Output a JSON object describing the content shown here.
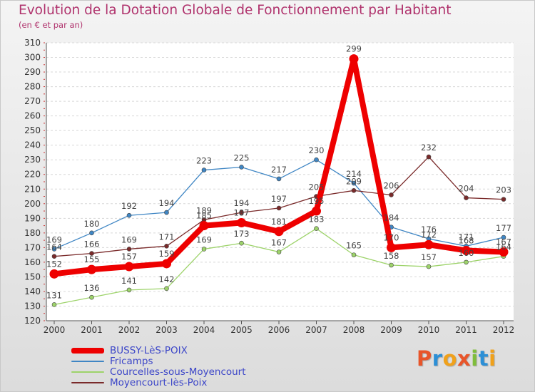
{
  "title": "Evolution de la Dotation Globale de Fonctionnement par Habitant",
  "subtitle": "(en € et par an)",
  "logo": {
    "text": "Proxiti",
    "letters": [
      {
        "ch": "P",
        "color": "#e8552a"
      },
      {
        "ch": "r",
        "color": "#2c8fd6"
      },
      {
        "ch": "o",
        "color": "#f0a11b"
      },
      {
        "ch": "x",
        "color": "#e8552a"
      },
      {
        "ch": "i",
        "color": "#7fbd3c"
      },
      {
        "ch": "t",
        "color": "#2c8fd6"
      },
      {
        "ch": "i",
        "color": "#f0a11b"
      }
    ]
  },
  "chart_data": {
    "type": "line",
    "x": [
      "2000",
      "2001",
      "2002",
      "2003",
      "2004",
      "2005",
      "2006",
      "2007",
      "2008",
      "2009",
      "2010",
      "2011",
      "2012"
    ],
    "ylim": [
      120,
      310
    ],
    "yticks": [
      120,
      130,
      140,
      150,
      160,
      170,
      180,
      190,
      200,
      210,
      220,
      230,
      240,
      250,
      260,
      270,
      280,
      290,
      300,
      310
    ],
    "grid": "dashed-horizontal",
    "legend": "bottom-left",
    "series": [
      {
        "name": "Fricamps",
        "color": "#3f86c4",
        "thick": false,
        "values": [
          169,
          180,
          192,
          194,
          223,
          225,
          217,
          230,
          214,
          184,
          176,
          171,
          177
        ]
      },
      {
        "name": "Courcelles-sous-Moyencourt",
        "color": "#9dd36a",
        "thick": false,
        "values": [
          131,
          136,
          141,
          142,
          169,
          173,
          167,
          183,
          165,
          158,
          157,
          160,
          164
        ]
      },
      {
        "name": "Moyencourt-lès-Poix",
        "color": "#7a2a2a",
        "thick": false,
        "values": [
          164,
          166,
          169,
          171,
          189,
          194,
          197,
          205,
          209,
          206,
          232,
          204,
          203
        ]
      },
      {
        "name": "BUSSY-LèS-POIX",
        "color": "#ee0000",
        "thick": true,
        "values": [
          152,
          155,
          157,
          159,
          185,
          187,
          181,
          195,
          299,
          170,
          172,
          168,
          167
        ]
      }
    ],
    "legend_order": [
      "BUSSY-LèS-POIX",
      "Fricamps",
      "Courcelles-sous-Moyencourt",
      "Moyencourt-lès-Poix"
    ]
  }
}
